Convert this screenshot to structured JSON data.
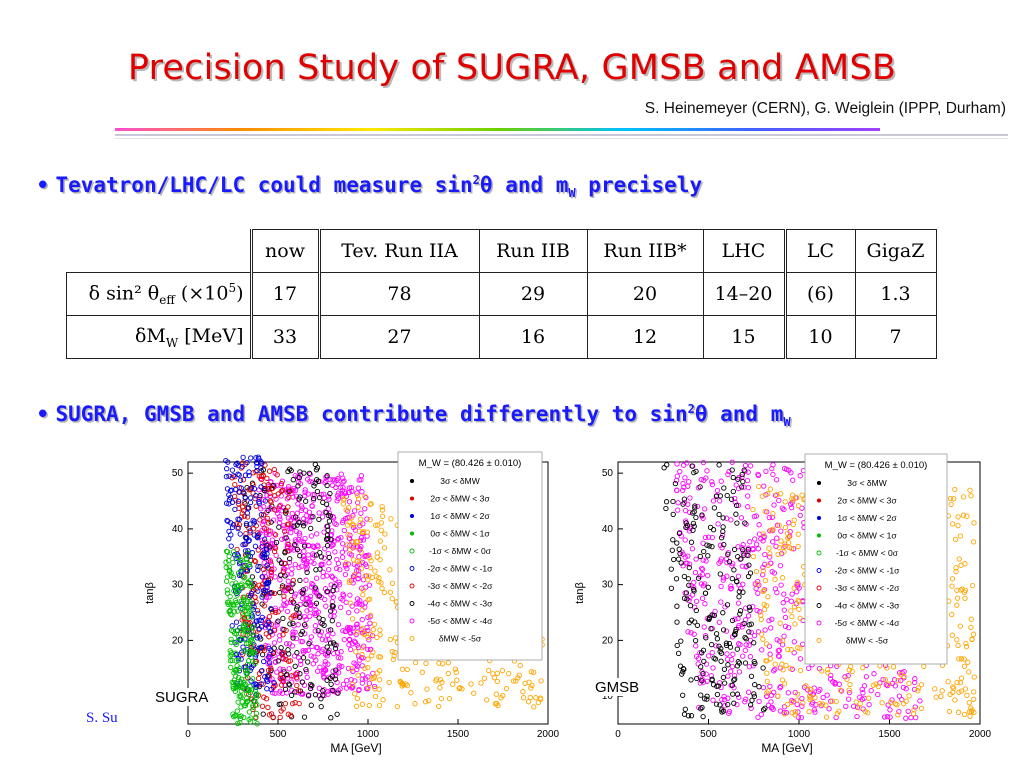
{
  "title": "Precision Study of SUGRA, GMSB and AMSB",
  "authors": "S. Heinemeyer (CERN), G. Weiglein (IPPP, Durham)",
  "bullets": {
    "b1": {
      "pre": "Tevatron/LHC/LC could measure sin",
      "sup": "2",
      "theta": "θ",
      "mid": " and m",
      "sub": "W",
      "post": " precisely"
    },
    "b2": {
      "pre": "SUGRA, GMSB and AMSB contribute differently to sin",
      "sup": "2",
      "theta": "θ",
      "mid": " and m",
      "sub": "W"
    }
  },
  "table": {
    "headers": [
      "now",
      "Tev. Run IIA",
      "Run IIB",
      "Run IIB*",
      "LHC",
      "LC",
      "GigaZ"
    ],
    "rows": [
      {
        "label_html": "δ sin² θ<sub>eff</sub> (×10<sup>5</sup>)",
        "values": [
          "17",
          "78",
          "29",
          "20",
          "14–20",
          "(6)",
          "1.3"
        ]
      },
      {
        "label_html": "δM<sub>W</sub>  [MeV]",
        "values": [
          "33",
          "27",
          "16",
          "12",
          "15",
          "10",
          "7"
        ]
      }
    ]
  },
  "footer": "S. Su",
  "chart_data": [
    {
      "type": "scatter",
      "label": "SUGRA",
      "xlabel": "M_A [GeV]",
      "ylabel": "tanβ",
      "xlim": [
        0,
        2000
      ],
      "ylim": [
        5,
        52
      ],
      "xticks": [
        0,
        500,
        1000,
        1500,
        2000
      ],
      "yticks": [
        10,
        20,
        30,
        40,
        50
      ],
      "legend_title": "M_W = (80.426 ± 0.010)",
      "legend": [
        "3σ < δM_W",
        "2σ < δM_W < 3σ",
        "1σ < δM_W < 2σ",
        "0σ < δM_W < 1σ",
        "-1σ < δM_W < 0σ",
        "-2σ < δM_W < -1σ",
        "-3σ < δM_W < -2σ",
        "-4σ < δM_W < -3σ",
        "-5σ < δM_W < -4σ",
        "δM_W < -5σ"
      ],
      "legend_colors": [
        "#000000",
        "#e00000",
        "#0000e0",
        "#00c000",
        "#00c000",
        "#0000e0",
        "#e00000",
        "#000000",
        "#ff00ff",
        "#ffa500"
      ],
      "regions": [
        {
          "series": "-5σ < δM_W < -4σ",
          "color": "#ff00ff",
          "x_range": [
            380,
            980
          ],
          "y_range": [
            10,
            50
          ]
        },
        {
          "series": "δM_W < -5σ",
          "color": "#ffa500",
          "x_range": [
            850,
            1950
          ],
          "y_range": [
            8,
            46
          ]
        },
        {
          "series": "-4σ < δM_W < -3σ",
          "color": "#000000",
          "x_range": [
            290,
            780
          ],
          "y_range": [
            6,
            52
          ]
        },
        {
          "series": "2σ < δM_W < 3σ",
          "color": "#e00000",
          "x_range": [
            240,
            560
          ],
          "y_range": [
            6,
            52
          ]
        },
        {
          "series": "1σ < δM_W < 2σ",
          "color": "#0000e0",
          "x_range": [
            200,
            420
          ],
          "y_range": [
            10,
            53
          ]
        },
        {
          "series": "0σ < δM_W < 1σ",
          "color": "#00c000",
          "x_range": [
            180,
            320
          ],
          "y_range": [
            5,
            36
          ]
        }
      ]
    },
    {
      "type": "scatter",
      "label": "GMSB",
      "xlabel": "M_A [GeV]",
      "ylabel": "tanβ",
      "xlim": [
        0,
        2000
      ],
      "ylim": [
        5,
        52
      ],
      "xticks": [
        0,
        500,
        1000,
        1500,
        2000
      ],
      "yticks": [
        10,
        20,
        30,
        40,
        50
      ],
      "legend_title": "M_W = (80.426 ± 0.010)",
      "legend": [
        "3σ < δM_W",
        "2σ < δM_W < 3σ",
        "1σ < δM_W < 2σ",
        "0σ < δM_W < 1σ",
        "-1σ < δM_W < 0σ",
        "-2σ < δM_W < -1σ",
        "-3σ < δM_W < -2σ",
        "-4σ < δM_W < -3σ",
        "-5σ < δM_W < -4σ",
        "δM_W < -5σ"
      ],
      "legend_colors": [
        "#000000",
        "#e00000",
        "#0000e0",
        "#00c000",
        "#00c000",
        "#0000e0",
        "#e00000",
        "#000000",
        "#ff00ff",
        "#ffa500"
      ],
      "regions": [
        {
          "series": "-5σ < δM_W < -4σ",
          "color": "#ff00ff",
          "x_range": [
            300,
            1550
          ],
          "y_range": [
            6,
            52
          ]
        },
        {
          "series": "δM_W < -5σ",
          "color": "#ffa500",
          "x_range": [
            700,
            1950
          ],
          "y_range": [
            6,
            48
          ]
        },
        {
          "series": "-4σ < δM_W < -3σ",
          "color": "#000000",
          "x_range": [
            230,
            700
          ],
          "y_range": [
            6,
            52
          ]
        }
      ]
    }
  ]
}
